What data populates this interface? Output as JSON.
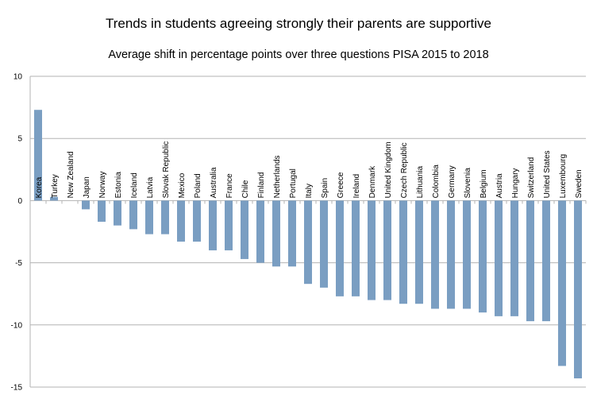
{
  "chart_data": {
    "type": "bar",
    "title": "Trends in students agreeing strongly their parents are supportive",
    "subtitle": "Average shift in percentage points over three questions PISA 2015 to 2018",
    "xlabel": "",
    "ylabel": "",
    "ylim": [
      -15,
      10
    ],
    "yticks": [
      10,
      5,
      0,
      -5,
      -10,
      -15
    ],
    "grid": true,
    "legend": "none",
    "bar_color": "#7a9ec2",
    "categories": [
      "Korea",
      "Turkey",
      "New Zealand",
      "Japan",
      "Norway",
      "Estonia",
      "Iceland",
      "Latvia",
      "Slovak Republic",
      "Mexico",
      "Poland",
      "Australia",
      "France",
      "Chile",
      "Finland",
      "Netherlands",
      "Portugal",
      "Italy",
      "Spain",
      "Greece",
      "Ireland",
      "Denmark",
      "United Kingdom",
      "Czech Republic",
      "Lithuania",
      "Colombia",
      "Germany",
      "Slovenia",
      "Belgium",
      "Austria",
      "Hungary",
      "Switzerland",
      "United States",
      "Luxembourg",
      "Sweden"
    ],
    "values": [
      7.3,
      0.3,
      0.0,
      -0.7,
      -1.7,
      -2.0,
      -2.3,
      -2.7,
      -2.7,
      -3.3,
      -3.3,
      -4.0,
      -4.0,
      -4.7,
      -5.0,
      -5.3,
      -5.3,
      -6.7,
      -7.0,
      -7.7,
      -7.7,
      -8.0,
      -8.0,
      -8.3,
      -8.3,
      -8.7,
      -8.7,
      -8.7,
      -9.0,
      -9.3,
      -9.3,
      -9.7,
      -9.7,
      -13.3,
      -14.3
    ]
  }
}
